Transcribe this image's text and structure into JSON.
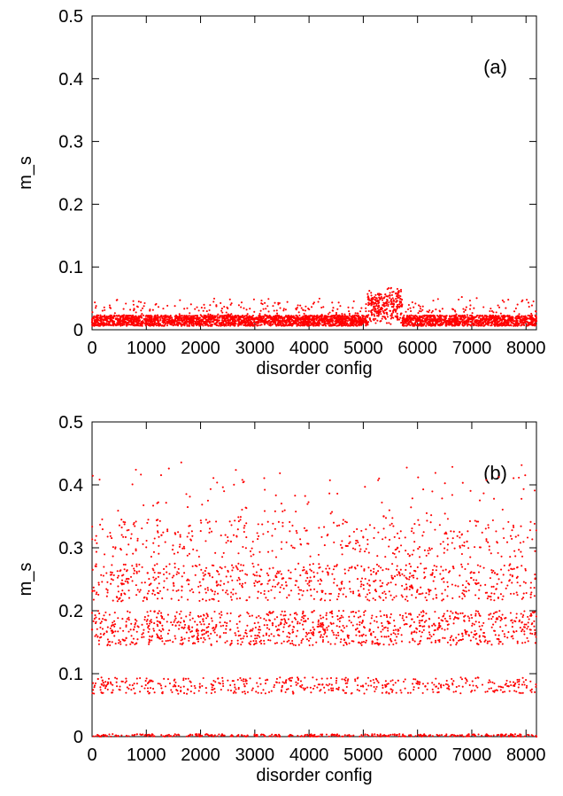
{
  "chart_data": [
    {
      "type": "scatter",
      "panel_label": "(a)",
      "xlabel": "disorder config",
      "ylabel": "m_s",
      "xlim": [
        0,
        8192
      ],
      "ylim": [
        0,
        0.5
      ],
      "xticks": [
        0,
        1000,
        2000,
        3000,
        4000,
        5000,
        6000,
        7000,
        8000
      ],
      "yticks": [
        0,
        0.1,
        0.2,
        0.3,
        0.4,
        0.5
      ],
      "ytick_labels": [
        "0",
        "0.1",
        "0.2",
        "0.3",
        "0.4",
        "0.5"
      ],
      "marker_color": "#ff0000",
      "grid": false,
      "series": [
        {
          "x": [
            0,
            512,
            1024,
            1536,
            2048,
            2560,
            3072,
            3584,
            4096,
            4608,
            5120,
            5376,
            5632,
            6144,
            6656,
            7168,
            7680,
            8191
          ],
          "values": [
            0.012,
            0.014,
            0.016,
            0.015,
            0.013,
            0.017,
            0.014,
            0.015,
            0.016,
            0.015,
            0.018,
            0.028,
            0.02,
            0.014,
            0.016,
            0.015,
            0.017,
            0.014
          ]
        }
      ]
    },
    {
      "type": "scatter",
      "panel_label": "(b)",
      "xlabel": "disorder config",
      "ylabel": "m_s",
      "xlim": [
        0,
        8192
      ],
      "ylim": [
        0,
        0.5
      ],
      "xticks": [
        0,
        1000,
        2000,
        3000,
        4000,
        5000,
        6000,
        7000,
        8000
      ],
      "yticks": [
        0,
        0.1,
        0.2,
        0.3,
        0.4,
        0.5
      ],
      "ytick_labels": [
        "0",
        "0.1",
        "0.2",
        "0.3",
        "0.4",
        "0.5"
      ],
      "marker_color": "#ff0000",
      "grid": false,
      "series": [
        {
          "x": [
            0,
            256,
            512,
            768,
            1024,
            1280,
            1536,
            1792,
            2048,
            2304,
            2560,
            2816,
            3072,
            3328,
            3584,
            3840,
            4096,
            4352,
            4608,
            4864,
            5120,
            5376,
            5632,
            5888,
            6144,
            6400,
            6656,
            6912,
            7168,
            7424,
            7680,
            7936,
            8191
          ],
          "values": [
            0.17,
            0.08,
            0.22,
            0.17,
            0.26,
            0.32,
            0.08,
            0.17,
            0.25,
            0.24,
            0.31,
            0.08,
            0.17,
            0.18,
            0.24,
            0.08,
            0.17,
            0.26,
            0.3,
            0.17,
            0.24,
            0.35,
            0.3,
            0.24,
            0.08,
            0.18,
            0.27,
            0.31,
            0.17,
            0.26,
            0.08,
            0.17,
            0.0
          ]
        }
      ]
    }
  ]
}
